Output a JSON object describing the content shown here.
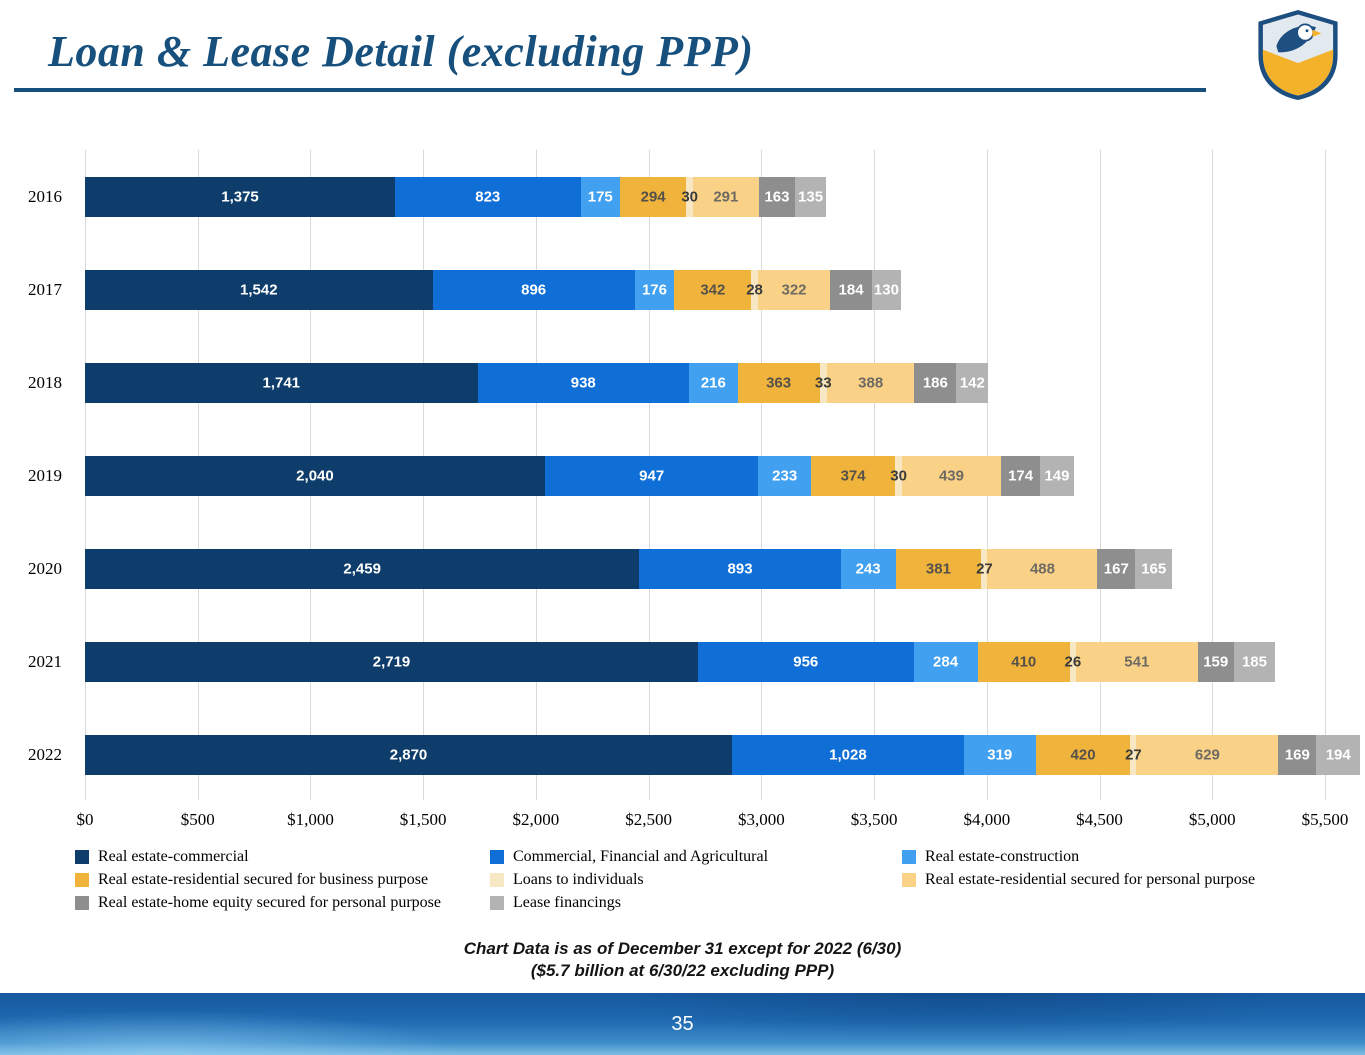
{
  "header": {
    "title": "Loan & Lease Detail (excluding PPP)"
  },
  "logo": {
    "description": "eagle shield logo",
    "navy": "#1c4e80",
    "silver": "#e2e9ef",
    "gold": "#f3b229"
  },
  "chart_data": {
    "type": "bar",
    "orientation": "horizontal",
    "stacked": true,
    "categories": [
      "2016",
      "2017",
      "2018",
      "2019",
      "2020",
      "2021",
      "2022"
    ],
    "series": [
      {
        "name": "Real estate-commercial",
        "color": "#0e3d6b",
        "label_color": "#ffffff",
        "values": [
          1375,
          1542,
          1741,
          2040,
          2459,
          2719,
          2870
        ]
      },
      {
        "name": "Commercial, Financial and Agricultural",
        "color": "#0f6fd6",
        "label_color": "#ffffff",
        "values": [
          823,
          896,
          938,
          947,
          893,
          956,
          1028
        ]
      },
      {
        "name": "Real estate-construction",
        "color": "#41a0f0",
        "label_color": "#ffffff",
        "values": [
          175,
          176,
          216,
          233,
          243,
          284,
          319
        ]
      },
      {
        "name": "Real estate-residential secured for business purpose",
        "color": "#f0b43c",
        "label_color": "#55514a",
        "values": [
          294,
          342,
          363,
          374,
          381,
          410,
          420
        ]
      },
      {
        "name": "Loans to individuals",
        "color": "#f7e7c3",
        "label_color": "#3a3a3a",
        "values": [
          30,
          28,
          33,
          30,
          27,
          26,
          27
        ]
      },
      {
        "name": "Real estate-residential secured for personal purpose",
        "color": "#fad287",
        "label_color": "#6e6a63",
        "values": [
          291,
          322,
          388,
          439,
          488,
          541,
          629
        ]
      },
      {
        "name": "Real estate-home equity secured for personal purpose",
        "color": "#8e8e8e",
        "label_color": "#ffffff",
        "values": [
          163,
          184,
          186,
          174,
          167,
          159,
          169
        ]
      },
      {
        "name": "Lease financings",
        "color": "#b3b3b3",
        "label_color": "#ffffff",
        "values": [
          135,
          130,
          142,
          149,
          165,
          185,
          194
        ]
      }
    ],
    "x_axis": {
      "min": 0,
      "max": 5500,
      "ticks": [
        "$0",
        "$500",
        "$1,000",
        "$1,500",
        "$2,000",
        "$2,500",
        "$3,000",
        "$3,500",
        "$4,000",
        "$4,500",
        "$5,000",
        "$5,500"
      ]
    },
    "grid": true,
    "legend_position": "bottom",
    "value_labels": "inside"
  },
  "footnotes": {
    "line1": "Chart Data is as of December 31 except for 2022 (6/30)",
    "line2": "($5.7 billion at 6/30/22 excluding PPP)"
  },
  "footer": {
    "page_number": "35"
  }
}
